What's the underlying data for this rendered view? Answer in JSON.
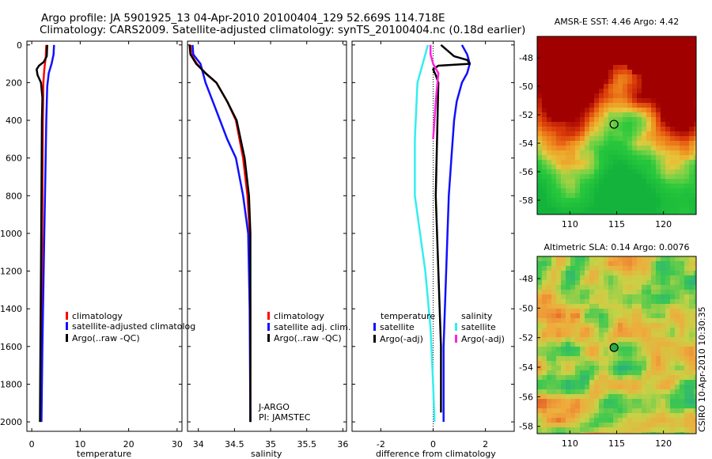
{
  "title": {
    "line1": "Argo profile: JA 5901925_13 04-Apr-2010 20100404_129 52.669S 114.718E",
    "line2": "Climatology: CARS2009. Satellite-adjusted climatology: synTS_20100404.nc (0.18d earlier)"
  },
  "side_label": "CSIRO 10-Apr-2010 10:30:35",
  "colors": {
    "climatology": "#ff0000",
    "satellite": "#1010ff",
    "argo": "#000000",
    "sal_satellite": "#33eeee",
    "sal_argo": "#ff22dd"
  },
  "chart_data": [
    {
      "type": "line",
      "id": "temperature",
      "xlabel": "temperature",
      "ylabel": "",
      "xlim": [
        -1,
        31
      ],
      "ylim": [
        2050,
        -20
      ],
      "xticks": [
        0,
        10,
        20,
        30
      ],
      "yticks": [
        0,
        200,
        400,
        600,
        800,
        1000,
        1200,
        1400,
        1600,
        1800,
        2000
      ],
      "series": [
        {
          "name": "climatology",
          "color": "#ff0000",
          "x": [
            3.0,
            2.9,
            2.6,
            2.4,
            2.3,
            2.2,
            2.1,
            2.0,
            1.9,
            1.8
          ],
          "y": [
            0,
            60,
            130,
            200,
            400,
            800,
            1200,
            1600,
            1800,
            2000
          ]
        },
        {
          "name": "satellite-adjusted climatology",
          "color": "#1010ff",
          "x": [
            4.6,
            4.5,
            4.1,
            3.5,
            3.2,
            3.0,
            2.8,
            2.6,
            2.4,
            2.2,
            2.1,
            2.0
          ],
          "y": [
            0,
            50,
            100,
            150,
            220,
            400,
            700,
            1000,
            1300,
            1600,
            1800,
            2000
          ]
        },
        {
          "name": "Argo(..raw -QC)",
          "color": "#000000",
          "x": [
            3.2,
            3.1,
            2.5,
            1.5,
            1.0,
            1.2,
            1.9,
            2.2,
            2.1,
            2.0,
            1.9,
            1.8,
            1.7
          ],
          "y": [
            0,
            60,
            90,
            110,
            130,
            160,
            200,
            280,
            400,
            800,
            1200,
            1600,
            2000
          ]
        }
      ],
      "legend": {
        "placement": "lower-right",
        "entries": [
          "climatology",
          "satellite-adjusted climatology",
          "Argo(..raw -QC)"
        ],
        "visible_text": [
          "climatology",
          "satellite-adjusted climatolog",
          "Argo(..raw -QC)"
        ]
      }
    },
    {
      "type": "line",
      "id": "salinity",
      "xlabel": "salinity",
      "ylabel": "",
      "xlim": [
        33.85,
        36.05
      ],
      "ylim": [
        2050,
        -20
      ],
      "xticks": [
        34,
        34.5,
        35,
        35.5,
        36
      ],
      "series": [
        {
          "name": "climatology",
          "color": "#ff0000",
          "x": [
            33.89,
            33.9,
            33.98,
            34.1,
            34.25,
            34.4,
            34.52,
            34.62,
            34.68,
            34.71,
            34.72,
            34.72
          ],
          "y": [
            0,
            50,
            100,
            150,
            200,
            300,
            400,
            600,
            800,
            1000,
            1400,
            2000
          ]
        },
        {
          "name": "satellite adj. clim.",
          "color": "#1010ff",
          "x": [
            33.92,
            33.93,
            34.03,
            34.1,
            34.2,
            34.3,
            34.4,
            34.52,
            34.62,
            34.69,
            34.71,
            34.72
          ],
          "y": [
            0,
            50,
            100,
            200,
            300,
            400,
            500,
            600,
            800,
            1000,
            1400,
            2000
          ]
        },
        {
          "name": "Argo(..raw -QC)",
          "color": "#000000",
          "x": [
            33.88,
            33.89,
            33.97,
            34.1,
            34.25,
            34.4,
            34.53,
            34.64,
            34.7,
            34.72,
            34.72,
            34.72
          ],
          "y": [
            0,
            50,
            100,
            150,
            200,
            300,
            400,
            600,
            800,
            1000,
            1400,
            2000
          ]
        }
      ],
      "legend": {
        "placement": "lower-right",
        "entries": [
          "climatology",
          "satellite adj. clim.",
          "Argo(..raw -QC)"
        ]
      },
      "annotation": [
        "J-ARGO",
        "PI: JAMSTEC"
      ]
    },
    {
      "type": "line",
      "id": "difference",
      "xlabel": "difference from climatology",
      "ylabel": "",
      "xlim": [
        -3.1,
        3.1
      ],
      "ylim": [
        2050,
        -20
      ],
      "xticks": [
        -2,
        0,
        2
      ],
      "series": [
        {
          "name": "temperature satellite",
          "color": "#1010ff",
          "x": [
            1.1,
            1.3,
            1.4,
            1.3,
            1.1,
            0.9,
            0.8,
            0.7,
            0.6,
            0.5,
            0.4,
            0.4
          ],
          "y": [
            0,
            50,
            100,
            150,
            200,
            300,
            400,
            600,
            800,
            1200,
            1600,
            2000
          ]
        },
        {
          "name": "temperature Argo(-adj)",
          "color": "#000000",
          "x": [
            0.3,
            0.8,
            1.3,
            1.4,
            0.2,
            0.0,
            0.1,
            0.2,
            0.1,
            0.2,
            0.3,
            0.3
          ],
          "y": [
            0,
            60,
            80,
            100,
            110,
            130,
            160,
            200,
            800,
            1200,
            1600,
            1950
          ]
        },
        {
          "name": "salinity satellite",
          "color": "#33eeee",
          "x": [
            -0.2,
            -0.6,
            -0.7,
            -0.7,
            -0.5,
            -0.3,
            -0.1,
            0.0,
            0.05
          ],
          "y": [
            0,
            200,
            500,
            800,
            1000,
            1200,
            1500,
            1800,
            2000
          ]
        },
        {
          "name": "salinity Argo(-adj)",
          "color": "#ff22dd",
          "x": [
            -0.1,
            -0.1,
            0.0,
            0.2,
            0.1,
            0.05,
            0.0
          ],
          "y": [
            0,
            50,
            100,
            150,
            300,
            400,
            500
          ]
        }
      ],
      "legend": {
        "placement": "lower-right",
        "columns": [
          {
            "header": "temperature",
            "entries": [
              "satellite",
              "Argo(-adj)"
            ]
          },
          {
            "header": "salinity",
            "entries": [
              "satellite",
              "Argo(-adj)"
            ]
          }
        ]
      }
    },
    {
      "type": "heatmap",
      "id": "sst-map",
      "title": "AMSR-E SST: 4.46 Argo: 4.42",
      "xlim": [
        106.5,
        123.5
      ],
      "ylim": [
        -59,
        -46.5
      ],
      "xticks": [
        110,
        115,
        120
      ],
      "yticks": [
        -48,
        -50,
        -52,
        -54,
        -56,
        -58
      ],
      "marker": {
        "lon": 114.718,
        "lat": -52.669
      }
    },
    {
      "type": "heatmap",
      "id": "sla-map",
      "title": "Altimetric SLA: 0.14 Argo: 0.0076",
      "xlim": [
        106.5,
        123.5
      ],
      "ylim": [
        -58.5,
        -46.5
      ],
      "xticks": [
        110,
        115,
        120
      ],
      "yticks": [
        -48,
        -50,
        -52,
        -54,
        -56,
        -58
      ],
      "marker": {
        "lon": 114.718,
        "lat": -52.669
      }
    }
  ]
}
